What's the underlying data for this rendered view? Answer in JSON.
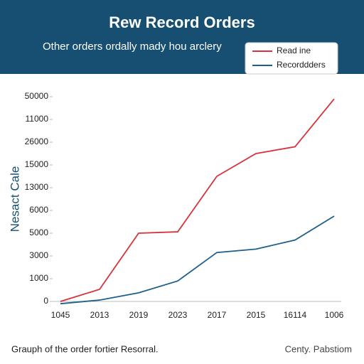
{
  "chart_data": {
    "type": "line",
    "title": "Rew Record Orders",
    "subtitle": "Other orders ordally mady hou arclery",
    "ylabel": "Nesact Cale",
    "footer_left": "Grauph of the order fortier Resorral.",
    "footer_right": "Centy. Pabstiom",
    "categories": [
      "1045",
      "2013",
      "2019",
      "2023",
      "2017",
      "2015",
      "16114",
      "1006"
    ],
    "series": [
      {
        "name": "Read ine",
        "color": "#d8323c",
        "values": [
          0,
          0.53,
          3.0,
          3.06,
          5.5,
          6.5,
          6.8,
          8.9
        ]
      },
      {
        "name": "Recorddders",
        "color": "#1f5f8b",
        "values": [
          -0.1,
          0.06,
          0.38,
          0.9,
          2.15,
          2.3,
          2.7,
          3.75
        ]
      }
    ],
    "ylim": [
      0,
      9
    ],
    "yticks": [
      {
        "value": 0,
        "label": "0"
      },
      {
        "value": 1,
        "label": "1000"
      },
      {
        "value": 2,
        "label": "3000"
      },
      {
        "value": 3,
        "label": "5000"
      },
      {
        "value": 4,
        "label": "6000"
      },
      {
        "value": 5,
        "label": "13000"
      },
      {
        "value": 6,
        "label": "15000"
      },
      {
        "value": 7,
        "label": "26000"
      },
      {
        "value": 8,
        "label": "11000"
      },
      {
        "value": 9,
        "label": "50000"
      }
    ],
    "legend": "top-right",
    "grid": false
  }
}
